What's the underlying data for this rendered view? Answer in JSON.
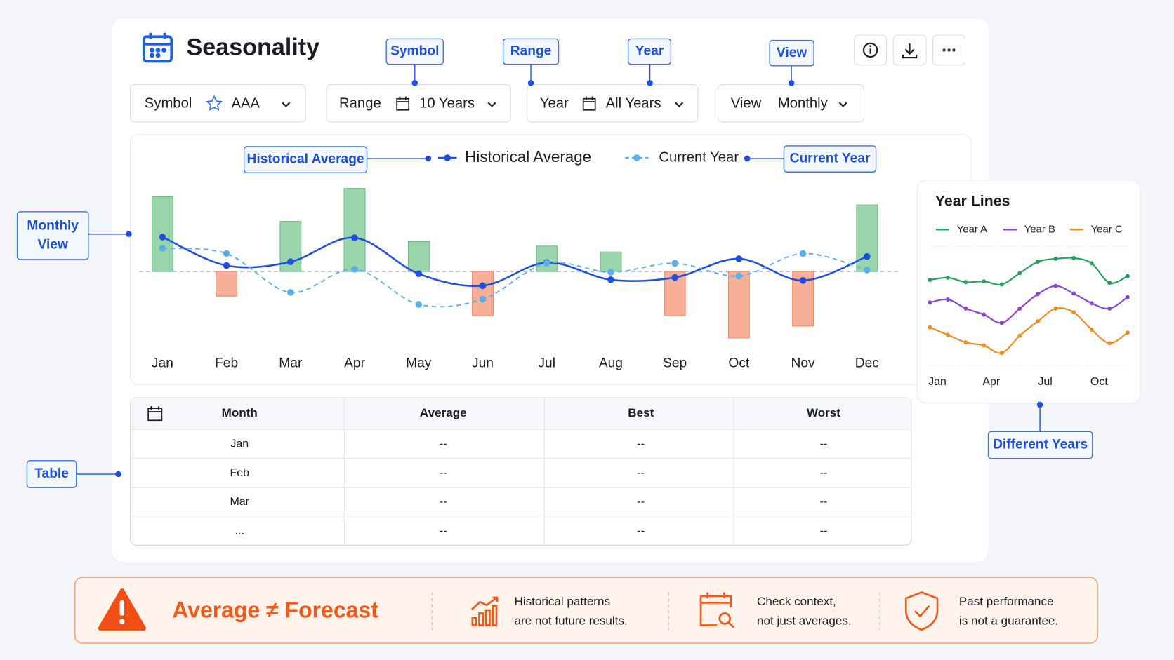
{
  "header": {
    "title": "Seasonality"
  },
  "controls": [
    {
      "label": "Symbol",
      "value": "AAA"
    },
    {
      "label": "Range",
      "value": "10 Years"
    },
    {
      "label": "Year",
      "value": "All Years"
    },
    {
      "label": "View",
      "value": "Monthly"
    }
  ],
  "callouts": {
    "symbol": "Symbol",
    "range": "Range",
    "year": "Year",
    "view": "View",
    "historical_average": "Historical Average",
    "current_year": "Current Year",
    "monthly_view": [
      "Monthly",
      "View"
    ],
    "table": "Table",
    "different_years": "Different Years"
  },
  "chart_data": [
    {
      "type": "bar",
      "categories": [
        "Jan",
        "Feb",
        "Mar",
        "Apr",
        "May",
        "Jun",
        "Jul",
        "Aug",
        "Sep",
        "Oct",
        "Nov",
        "Dec"
      ],
      "values": [
        10.0,
        -3.3,
        6.7,
        11.1,
        4.0,
        -5.9,
        3.4,
        2.6,
        -5.9,
        -8.9,
        -7.3,
        8.9
      ],
      "positive_color": "#8fcfa2",
      "negative_color": "#f7a68d",
      "series": [
        {
          "name": "Historical Average",
          "color": "#1f4fe0",
          "style": "solid",
          "values": [
            4.6,
            0.8,
            1.3,
            4.5,
            -0.3,
            -1.9,
            1.2,
            -1.1,
            -0.8,
            1.7,
            -1.2,
            2.0
          ]
        },
        {
          "name": "Current Year",
          "color": "#5aaeea",
          "style": "dashed",
          "values": [
            3.1,
            2.4,
            -2.8,
            0.3,
            -4.4,
            -3.7,
            1.1,
            -0.1,
            1.1,
            -0.6,
            2.4,
            0.2
          ]
        }
      ]
    },
    {
      "type": "line",
      "title": "Year Lines",
      "categories": [
        "Jan",
        null,
        null,
        "Apr",
        null,
        null,
        "Jul",
        null,
        null,
        "Oct",
        null,
        null
      ],
      "series": [
        {
          "name": "Year A",
          "color": "#23a05c",
          "values": [
            26,
            29,
            23,
            24,
            20,
            35,
            50,
            54,
            55,
            48,
            22,
            31
          ]
        },
        {
          "name": "Year B",
          "color": "#8a45d2",
          "values": [
            -4,
            0,
            -12,
            -20,
            -31,
            -12,
            7,
            18,
            8,
            -5,
            -12,
            3
          ]
        },
        {
          "name": "Year C",
          "color": "#f08c1e",
          "values": [
            -37,
            -47,
            -57,
            -61,
            -71,
            -48,
            -29,
            -12,
            -17,
            -40,
            -58,
            -44
          ]
        }
      ]
    }
  ],
  "table": {
    "headers": [
      "Month",
      "Average",
      "Best",
      "Worst"
    ],
    "rows": [
      [
        "Jan",
        "--",
        "--",
        "--"
      ],
      [
        "Feb",
        "--",
        "--",
        "--"
      ],
      [
        "Mar",
        "--",
        "--",
        "--"
      ],
      [
        "...",
        "--",
        "--",
        "--"
      ]
    ]
  },
  "banner": {
    "headline": "Average ≠ Forecast",
    "notes": [
      [
        "Historical patterns",
        "are not future results."
      ],
      [
        "Check context,",
        "not just averages."
      ],
      [
        "Past performance",
        "is not a guarantee."
      ]
    ]
  }
}
